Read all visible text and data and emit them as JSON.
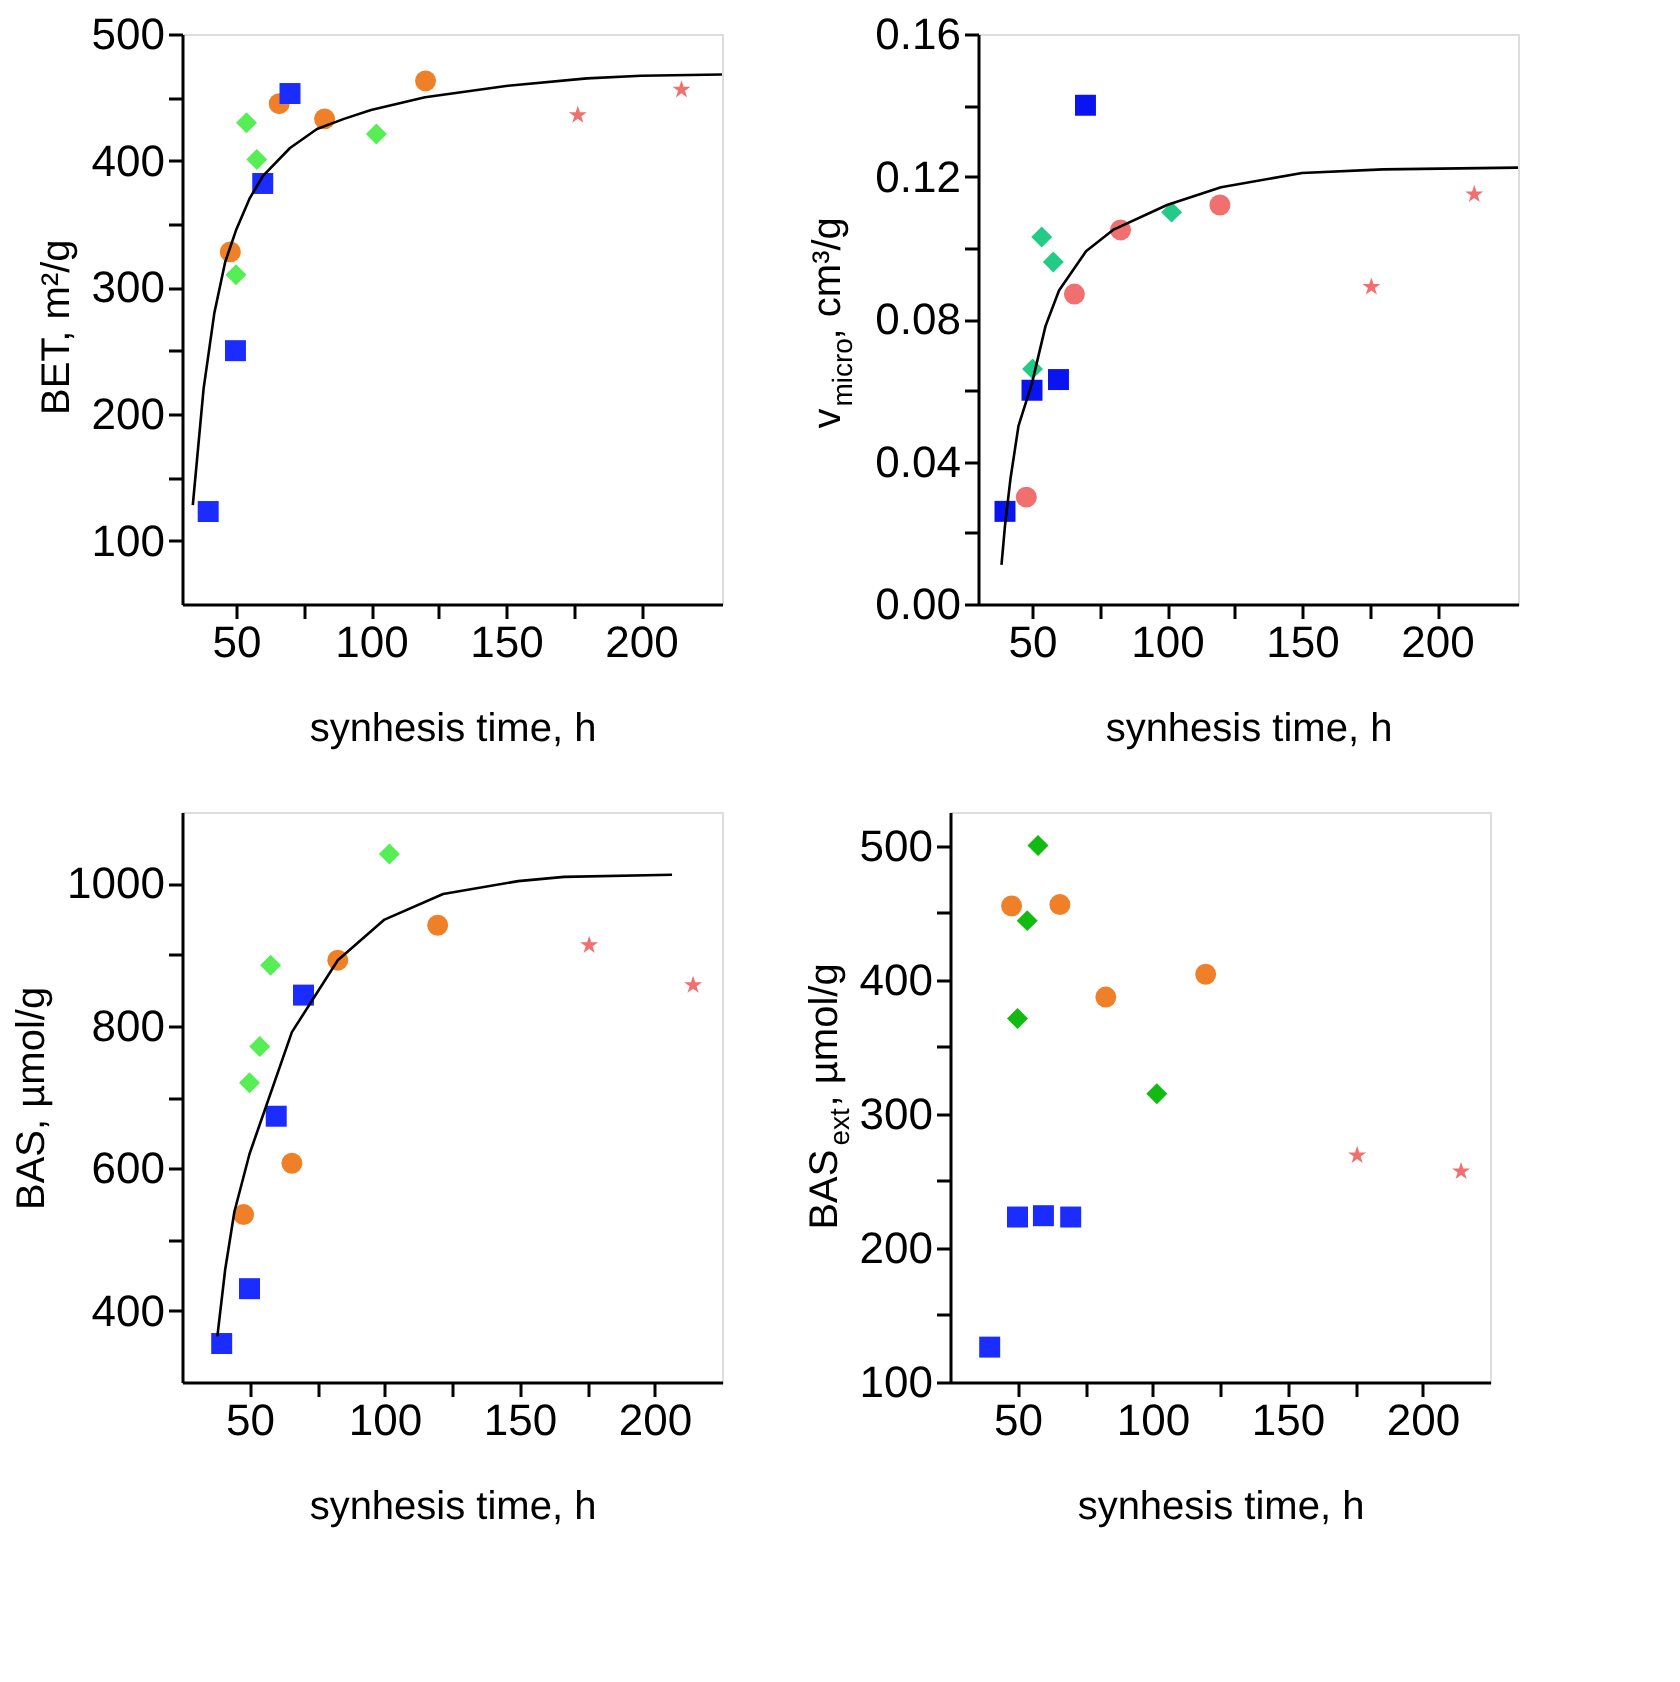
{
  "chart_data": [
    {
      "type": "scatter",
      "xlabel": "synhesis time, h",
      "ylabel": "BET, m²/g",
      "xlim": [
        30,
        230
      ],
      "ylim": [
        50,
        500
      ],
      "xticks": [
        50,
        {
          "value": 75,
          "label": null
        },
        100,
        {
          "value": 125,
          "label": null
        },
        150,
        {
          "value": 175,
          "label": null
        },
        200
      ],
      "yticks": [
        100,
        {
          "value": 150,
          "label": null
        },
        200,
        {
          "value": 250,
          "label": null
        },
        300,
        {
          "value": 350,
          "label": null
        },
        400,
        {
          "value": 450,
          "label": null
        },
        500
      ],
      "series": [
        {
          "color": "#f08028",
          "marker": "circle",
          "x": [
            47.9,
            66,
            82.8,
            120.2
          ],
          "values": [
            328,
            445,
            433,
            463
          ]
        },
        {
          "color": "#1a2cff",
          "marker": "square",
          "x": [
            39.7,
            49.8,
            59.9,
            70
          ],
          "values": [
            123,
            250,
            382,
            453
          ]
        },
        {
          "color": "#55ee55",
          "marker": "diamond",
          "x": [
            50,
            53.9,
            57.7,
            102
          ],
          "values": [
            310,
            430,
            401,
            421
          ]
        },
        {
          "color": "#f07070",
          "marker": "star",
          "x": [
            176.6,
            215
          ],
          "values": [
            436,
            456
          ]
        },
        {
          "type": "line",
          "color": "#000000",
          "marker": "none",
          "x": [
            34,
            38,
            42,
            46,
            50,
            55,
            60,
            70,
            80,
            90,
            100,
            120,
            150,
            180,
            200,
            230
          ],
          "values": [
            128,
            220,
            280,
            320,
            345,
            370,
            388,
            410,
            425,
            433,
            440,
            450,
            459,
            465,
            467,
            468
          ]
        }
      ]
    },
    {
      "type": "scatter",
      "xlabel": "synhesis time, h",
      "ylabel": "v$_{micro}$, cm³/g",
      "xlim": [
        30,
        230
      ],
      "ylim": [
        0,
        0.16
      ],
      "xticks": [
        50,
        {
          "value": 75,
          "label": null
        },
        100,
        {
          "value": 125,
          "label": null
        },
        150,
        {
          "value": 175,
          "label": null
        },
        200
      ],
      "yticks": [
        {
          "value": 0,
          "label": "0.00"
        },
        {
          "value": 0.02,
          "label": null
        },
        0.04,
        {
          "value": 0.06,
          "label": null
        },
        0.08,
        {
          "value": 0.1,
          "label": null
        },
        0.12,
        {
          "value": 0.14,
          "label": null
        },
        0.16
      ],
      "series": [
        {
          "color": "#f07070",
          "marker": "circle",
          "x": [
            47.9,
            65.7,
            82.8,
            119.6
          ],
          "values": [
            0.03,
            0.087,
            0.105,
            0.112
          ]
        },
        {
          "color": "#0a14f0",
          "marker": "square",
          "x": [
            40,
            50,
            59.8,
            69.8
          ],
          "values": [
            0.026,
            0.06,
            0.063,
            0.14
          ]
        },
        {
          "color": "#22cc88",
          "marker": "diamond",
          "x": [
            50.2,
            53.6,
            57.9,
            101.7
          ],
          "values": [
            0.066,
            0.103,
            0.096,
            0.11
          ]
        },
        {
          "color": "#f07070",
          "marker": "star",
          "x": [
            175.7,
            213.8
          ],
          "values": [
            0.089,
            0.115
          ]
        },
        {
          "type": "line",
          "color": "#000000",
          "marker": "none",
          "x": [
            38.7,
            40,
            42,
            45,
            50,
            55,
            60,
            70,
            80,
            100,
            120,
            150,
            180,
            230
          ],
          "values": [
            0.011,
            0.022,
            0.035,
            0.05,
            0.062,
            0.078,
            0.088,
            0.099,
            0.105,
            0.112,
            0.117,
            0.121,
            0.122,
            0.1225
          ]
        }
      ]
    },
    {
      "type": "scatter",
      "xlabel": "synhesis time, h",
      "ylabel": "BAS, µmol/g",
      "xlim": [
        25,
        225
      ],
      "ylim": [
        300,
        1100
      ],
      "xticks": [
        50,
        {
          "value": 75,
          "label": null
        },
        100,
        {
          "value": 125,
          "label": null
        },
        150,
        {
          "value": 175,
          "label": null
        },
        200
      ],
      "yticks": [
        400,
        {
          "value": 500,
          "label": null
        },
        600,
        {
          "value": 700,
          "label": null
        },
        800,
        {
          "value": 900,
          "label": null
        },
        1000
      ],
      "series": [
        {
          "color": "#f08028",
          "marker": "circle",
          "x": [
            47.8,
            65.7,
            82.7,
            119.7
          ],
          "values": [
            535,
            607,
            892,
            941
          ]
        },
        {
          "color": "#1a2cff",
          "marker": "square",
          "x": [
            39.7,
            50,
            59.9,
            70
          ],
          "values": [
            354,
            431,
            673,
            843
          ]
        },
        {
          "color": "#55ee55",
          "marker": "diamond",
          "x": [
            50,
            53.8,
            57.8,
            101.8
          ],
          "values": [
            720,
            771,
            885,
            1041
          ]
        },
        {
          "color": "#f07070",
          "marker": "star",
          "x": [
            175.8,
            214.3
          ],
          "values": [
            913,
            857
          ]
        },
        {
          "type": "line",
          "color": "#000000",
          "marker": "none",
          "x": [
            38.1,
            41,
            44.4,
            50,
            65.7,
            82.7,
            100,
            121.7,
            149.5,
            166.5,
            206.5
          ],
          "values": [
            364,
            458,
            539,
            620,
            791,
            892,
            949,
            985,
            1003,
            1009,
            1012
          ]
        }
      ]
    },
    {
      "type": "scatter",
      "xlabel": "synhesis time, h",
      "ylabel": "BAS$_{ext}$, µmol/g",
      "xlim": [
        25,
        225
      ],
      "ylim": [
        100,
        525
      ],
      "xticks": [
        50,
        {
          "value": 75,
          "label": null
        },
        100,
        {
          "value": 125,
          "label": null
        },
        150,
        {
          "value": 175,
          "label": null
        },
        200
      ],
      "yticks": [
        100,
        {
          "value": 150,
          "label": null
        },
        200,
        {
          "value": 250,
          "label": null
        },
        300,
        {
          "value": 350,
          "label": null
        },
        400,
        {
          "value": 450,
          "label": null
        },
        500
      ],
      "series": [
        {
          "color": "#f08028",
          "marker": "circle",
          "x": [
            47.8,
            65.7,
            82.7,
            119.7
          ],
          "values": [
            455,
            456,
            387,
            404
          ]
        },
        {
          "color": "#1a2cff",
          "marker": "square",
          "x": [
            39.7,
            50,
            59.6,
            69.7
          ],
          "values": [
            126,
            223,
            224,
            223
          ]
        },
        {
          "color": "#11bb11",
          "marker": "diamond",
          "x": [
            50,
            53.6,
            57.6,
            101.6
          ],
          "values": [
            371,
            444,
            500,
            315
          ]
        },
        {
          "color": "#f07070",
          "marker": "star",
          "x": [
            175.8,
            214.3
          ],
          "values": [
            269,
            257
          ]
        }
      ]
    }
  ]
}
